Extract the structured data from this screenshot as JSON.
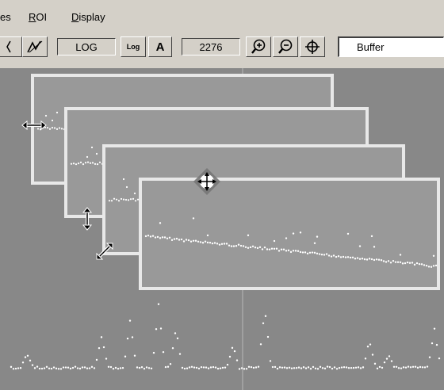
{
  "menu": {
    "items": [
      {
        "label": "es",
        "accel": ""
      },
      {
        "label": "ROI",
        "accel": "R"
      },
      {
        "label": "Display",
        "accel": "D"
      }
    ]
  },
  "toolbar": {
    "scale_label": "LOG",
    "log_toggle_label": "Log",
    "auto_label": "A",
    "value": "2276",
    "buffer_field": "Buffer",
    "icons": [
      "partial-tool-icon",
      "line-tool-icon",
      "zoom-in-icon",
      "zoom-out-icon",
      "center-target-icon"
    ]
  },
  "canvas": {
    "background": "#888888",
    "window_face": "#999999",
    "window_border": "#e8e8e8",
    "plot_color": "#ffffff",
    "cursors": [
      "horizontal-resize-cursor",
      "vertical-resize-cursor",
      "diagonal-resize-cursor",
      "move-cursor"
    ]
  }
}
